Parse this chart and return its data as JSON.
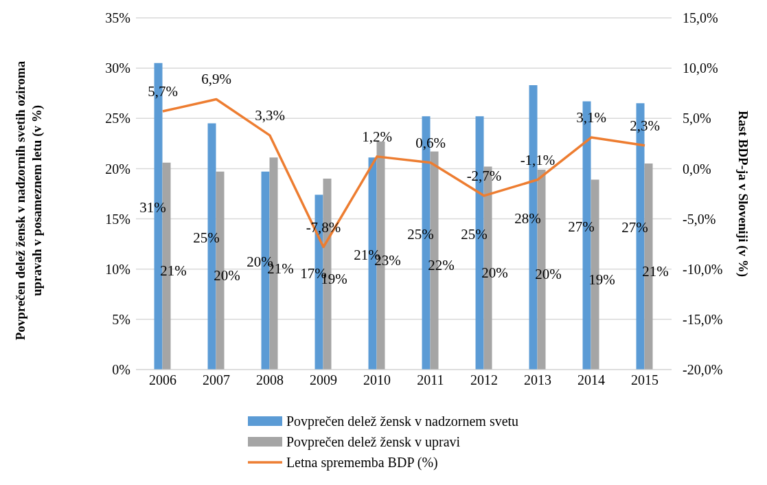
{
  "chart_data": {
    "type": "bar",
    "categories": [
      "2006",
      "2007",
      "2008",
      "2009",
      "2010",
      "2011",
      "2012",
      "2013",
      "2014",
      "2015"
    ],
    "series": [
      {
        "name": "Povprečen delež žensk v nadzornem svetu",
        "color": "#5b9bd5",
        "values": [
          30.5,
          24.5,
          19.7,
          17.4,
          21.1,
          25.2,
          25.2,
          28.3,
          26.7,
          26.5
        ],
        "value_labels": [
          "31%",
          "25%",
          "20%",
          "17%",
          "21%",
          "25%",
          "25%",
          "28%",
          "27%",
          "27%"
        ]
      },
      {
        "name": "Povprečen delež žensk v upravi",
        "color": "#a5a5a5",
        "values": [
          20.6,
          19.7,
          21.1,
          19.0,
          22.7,
          21.7,
          20.2,
          19.9,
          18.9,
          20.5
        ],
        "value_labels": [
          "21%",
          "20%",
          "21%",
          "19%",
          "23%",
          "22%",
          "20%",
          "20%",
          "19%",
          "21%"
        ]
      },
      {
        "name": "Letna sprememba BDP (%)",
        "type": "line",
        "axis": "y2",
        "color": "#ed7d31",
        "values": [
          5.7,
          6.9,
          3.3,
          -7.8,
          1.2,
          0.6,
          -2.7,
          -1.1,
          3.1,
          2.3
        ],
        "value_labels": [
          "5,7%",
          "6,9%",
          "3,3%",
          "-7,8%",
          "1,2%",
          "0,6%",
          "-2,7%",
          "-1,1%",
          "3,1%",
          "2,3%"
        ]
      }
    ],
    "ylabel": "Povprečen delež žensk v nadzornih svetih oziroma upravah v posameznem letu (v %)",
    "y2label": "Rast BDP-ja v Sloveniji (v %)",
    "ylim": [
      0,
      35
    ],
    "yticks": [
      {
        "value": 0,
        "label": "0%"
      },
      {
        "value": 5,
        "label": "5%"
      },
      {
        "value": 10,
        "label": "10%"
      },
      {
        "value": 15,
        "label": "15%"
      },
      {
        "value": 20,
        "label": "20%"
      },
      {
        "value": 25,
        "label": "25%"
      },
      {
        "value": 30,
        "label": "30%"
      },
      {
        "value": 35,
        "label": "35%"
      }
    ],
    "y2lim": [
      -20,
      15
    ],
    "y2ticks": [
      {
        "value": -20,
        "label": "-20,0%"
      },
      {
        "value": -15,
        "label": "-15,0%"
      },
      {
        "value": -10,
        "label": "-10,0%"
      },
      {
        "value": -5,
        "label": "-5,0%"
      },
      {
        "value": 0,
        "label": "0,0%"
      },
      {
        "value": 5,
        "label": "5,0%"
      },
      {
        "value": 10,
        "label": "10,0%"
      },
      {
        "value": 15,
        "label": "15,0%"
      }
    ],
    "grid": "y",
    "legend": "bottom",
    "marker": "none"
  }
}
